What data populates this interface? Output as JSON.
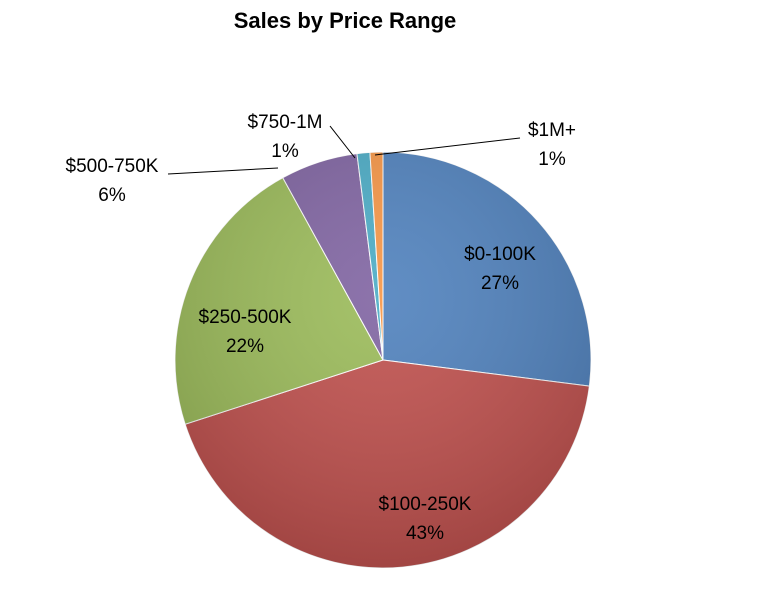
{
  "chart_data": {
    "type": "pie",
    "title": "Sales by Price Range",
    "slices": [
      {
        "label": "$0-100K",
        "value": 27,
        "value_label": "27%",
        "color": "#4F81BD"
      },
      {
        "label": "$100-250K",
        "value": 43,
        "value_label": "43%",
        "color": "#C0504D"
      },
      {
        "label": "$250-500K",
        "value": 22,
        "value_label": "22%",
        "color": "#9BBB59"
      },
      {
        "label": "$500-750K",
        "value": 6,
        "value_label": "6%",
        "color": "#8064A2"
      },
      {
        "label": "$750-1M",
        "value": 1,
        "value_label": "1%",
        "color": "#4BACC6"
      },
      {
        "label": "$1M+",
        "value": 1,
        "value_label": "1%",
        "color": "#F79646"
      }
    ],
    "legend": "none"
  }
}
